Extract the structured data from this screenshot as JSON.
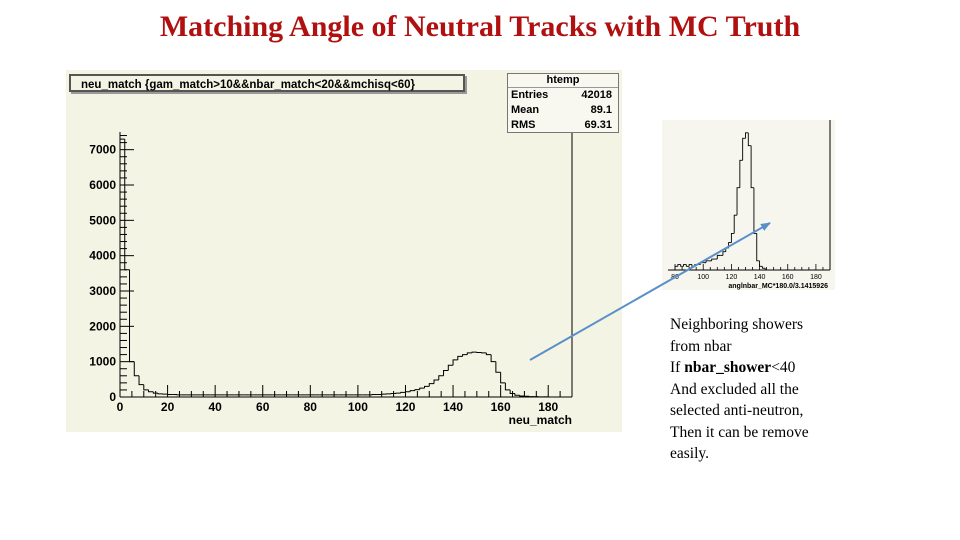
{
  "slide": {
    "title": "Matching Angle of Neutral Tracks with MC Truth"
  },
  "main_plot": {
    "hist_title": "neu_match {gam_match>10&&nbar_match<20&&mchisq<60}",
    "stats": {
      "name": "htemp",
      "rows": [
        {
          "label": "Entries",
          "value": "42018"
        },
        {
          "label": "Mean",
          "value": "89.1"
        },
        {
          "label": "RMS",
          "value": "69.31"
        }
      ]
    }
  },
  "inset": {
    "xlabel": "anglnbar_MC*180.0/3.1415926"
  },
  "note": {
    "line1": "Neighboring showers",
    "line2": "from nbar",
    "line3_prefix": "If ",
    "line3_bold": "nbar_shower",
    "line3_suffix": "<40",
    "line4": "And excluded all the",
    "line5": "selected anti-neutron,",
    "line6": "Then it can be remove",
    "line7": "easily."
  },
  "colors": {
    "title": "#b01010",
    "arrow": "#5b8fc9",
    "frame_bg": "#f4f4e4"
  },
  "chart_data": [
    {
      "type": "bar",
      "title": "neu_match {gam_match>10&&nbar_match<20&&mchisq<60}",
      "xlabel": "neu_match",
      "ylabel": "",
      "xlim": [
        0,
        190
      ],
      "ylim": [
        0,
        7500
      ],
      "x_ticks": [
        0,
        20,
        40,
        60,
        80,
        100,
        120,
        140,
        160,
        180
      ],
      "y_ticks": [
        0,
        1000,
        2000,
        3000,
        4000,
        5000,
        6000,
        7000
      ],
      "bin_width": 2,
      "bin_edges_start": 0,
      "values": [
        7300,
        3600,
        1000,
        600,
        350,
        200,
        150,
        110,
        90,
        80,
        70,
        70,
        60,
        60,
        60,
        60,
        60,
        60,
        60,
        60,
        60,
        60,
        60,
        60,
        60,
        60,
        60,
        60,
        60,
        60,
        60,
        60,
        60,
        60,
        60,
        60,
        60,
        60,
        60,
        60,
        60,
        60,
        60,
        60,
        60,
        60,
        60,
        60,
        60,
        60,
        60,
        60,
        60,
        70,
        70,
        80,
        90,
        100,
        110,
        130,
        150,
        180,
        210,
        250,
        300,
        380,
        480,
        600,
        750,
        900,
        1050,
        1150,
        1200,
        1250,
        1270,
        1260,
        1250,
        1200,
        1000,
        700,
        400,
        200,
        100,
        50,
        30,
        20,
        10,
        10,
        5,
        5
      ],
      "stats": {
        "name": "htemp",
        "entries": 42018,
        "mean": 89.1,
        "rms": 69.31
      }
    },
    {
      "type": "bar",
      "title": "",
      "xlabel": "anglnbar_MC*180.0/3.1415926",
      "xlim": [
        75,
        190
      ],
      "x_ticks": [
        80,
        100,
        120,
        140,
        160,
        180
      ],
      "bin_width": 2,
      "bin_edges_start": 80,
      "values": [
        2,
        3,
        2,
        3,
        2,
        3,
        2,
        3,
        3,
        4,
        4,
        5,
        5,
        6,
        6,
        8,
        8,
        10,
        12,
        15,
        20,
        30,
        45,
        60,
        72,
        75,
        68,
        45,
        20,
        5,
        2,
        1,
        0,
        0,
        0
      ]
    }
  ]
}
